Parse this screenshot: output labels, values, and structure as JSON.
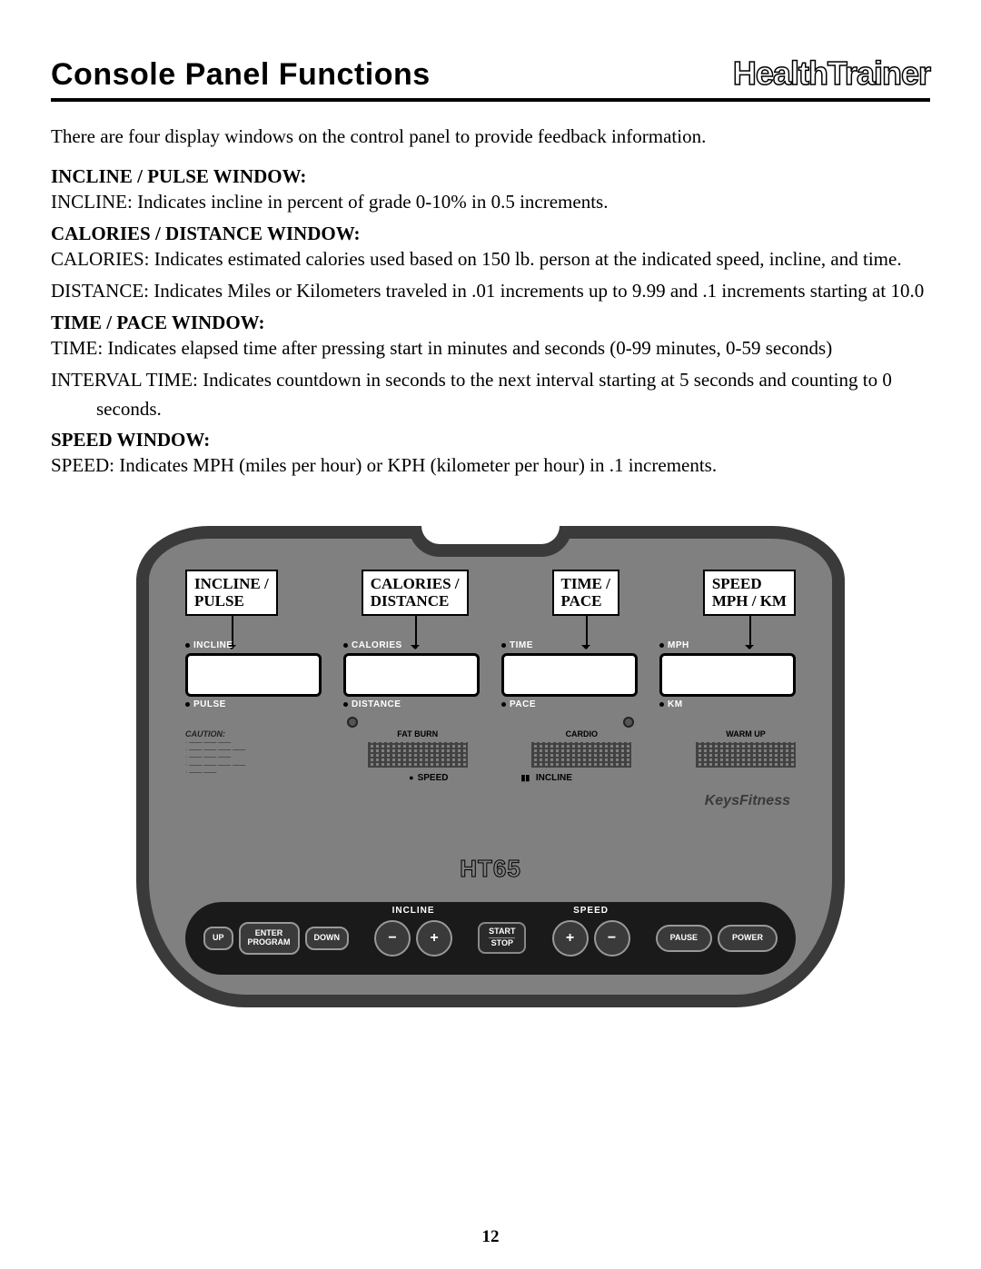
{
  "header": {
    "title": "Console Panel Functions",
    "brand": "HealthTrainer"
  },
  "intro": "There are four display windows on the control panel to provide feedback information.",
  "sections": [
    {
      "label": "INCLINE / PULSE WINDOW:",
      "lines": [
        "INCLINE: Indicates incline in percent of grade 0-10% in 0.5 increments."
      ]
    },
    {
      "label": "CALORIES / DISTANCE WINDOW:",
      "lines": [
        "CALORIES: Indicates estimated calories used based on 150 lb. person at the indicated speed, incline, and time.",
        "DISTANCE: Indicates Miles or Kilometers traveled in .01 increments up to 9.99 and .1 increments starting at 10.0"
      ]
    },
    {
      "label": "TIME / PACE WINDOW:",
      "lines": [
        "TIME:  Indicates elapsed time after pressing start in minutes and seconds (0-99 minutes, 0-59 seconds)",
        "INTERVAL TIME: Indicates countdown in seconds to the next interval starting at 5 seconds and counting to 0 seconds."
      ]
    },
    {
      "label": "SPEED WINDOW:",
      "lines": [
        "SPEED: Indicates MPH (miles per hour) or KPH (kilometer per hour) in .1 increments."
      ]
    }
  ],
  "console": {
    "callouts": [
      "INCLINE /\nPULSE",
      "CALORIES /\nDISTANCE",
      "TIME /\nPACE",
      "SPEED\nMPH / KM"
    ],
    "displays": [
      {
        "top": "INCLINE",
        "bottom": "PULSE"
      },
      {
        "top": "CALORIES",
        "bottom": "DISTANCE"
      },
      {
        "top": "TIME",
        "bottom": "PACE"
      },
      {
        "top": "MPH",
        "bottom": "KM"
      }
    ],
    "caution_heading": "CAUTION:",
    "programs": [
      {
        "label": "FAT BURN"
      },
      {
        "label": "CARDIO"
      },
      {
        "label": "WARM UP"
      }
    ],
    "legend_speed": "SPEED",
    "legend_incline": "INCLINE",
    "keys_logo": "KeysFitness",
    "model": "HT65",
    "buttons": {
      "up": "UP",
      "enter": "ENTER\nPROGRAM",
      "down": "DOWN",
      "incline_group": "INCLINE",
      "speed_group": "SPEED",
      "minus": "−",
      "plus": "+",
      "start": "START",
      "stop": "STOP",
      "pause": "PAUSE",
      "power": "POWER"
    }
  },
  "page_number": "12"
}
